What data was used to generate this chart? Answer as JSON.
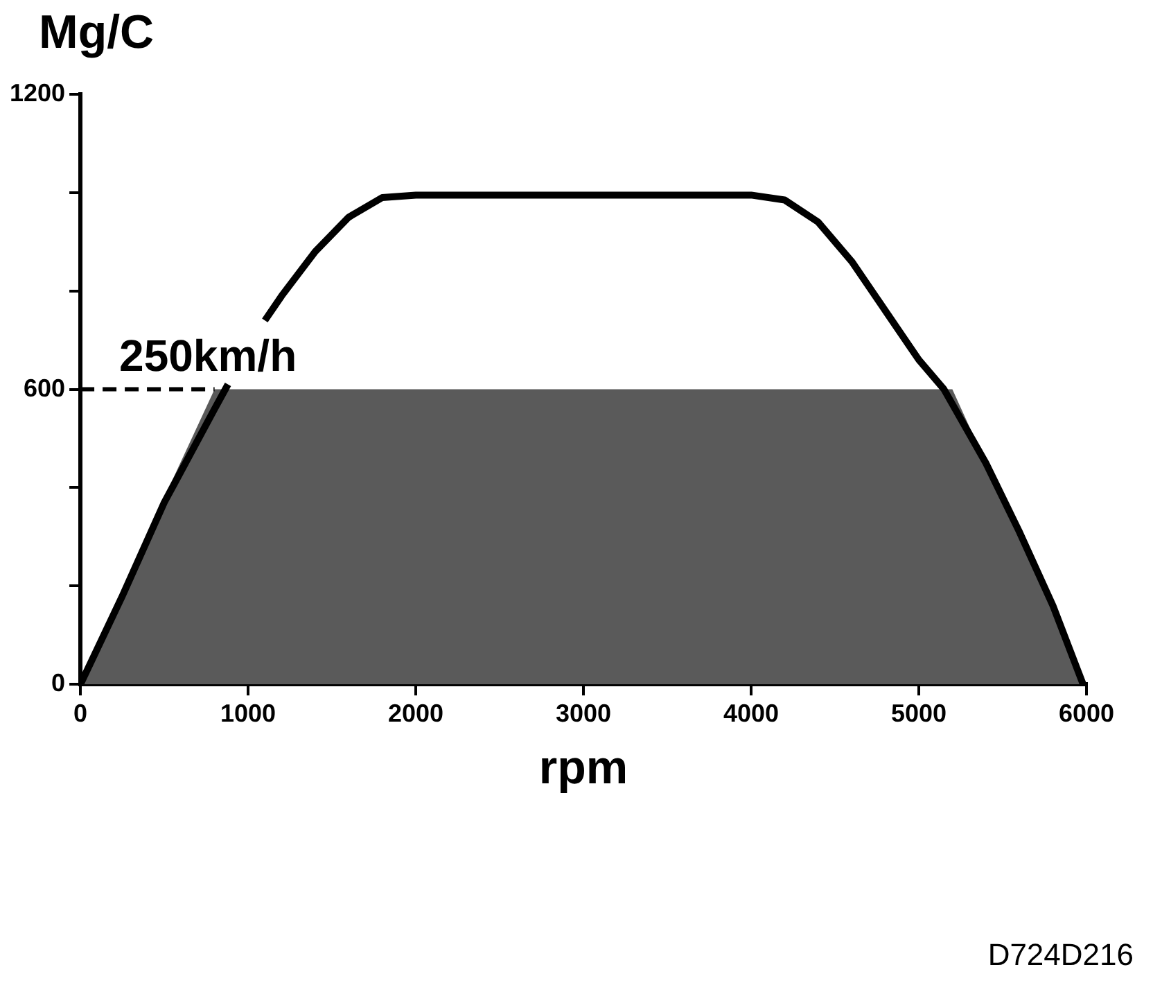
{
  "chart_data": {
    "type": "line",
    "ylabel": "Mg/C",
    "xlabel": "rpm",
    "annotations": [
      "D724D216"
    ],
    "xlim": [
      0,
      6000
    ],
    "xticks": [
      0,
      1000,
      2000,
      3000,
      4000,
      5000,
      6000
    ],
    "ylim": [
      0,
      1200
    ],
    "yticks": [
      0,
      {
        "value": 200,
        "label": null
      },
      {
        "value": 400,
        "label": null
      },
      600,
      {
        "value": 800,
        "label": null
      },
      {
        "value": 1000,
        "label": null
      },
      1200
    ],
    "series": [
      {
        "type": "area",
        "color": "#5a5a5a",
        "x": [
          0,
          250,
          500,
          800,
          5200,
          5400,
          5600,
          5800,
          5980
        ],
        "values": [
          0,
          190,
          380,
          600,
          600,
          450,
          300,
          150,
          0
        ]
      },
      {
        "type": "line",
        "color": "#000000",
        "x": [
          0,
          250,
          500,
          800,
          880,
          1000,
          1100,
          1200,
          1400,
          1600,
          1800,
          2000,
          4000,
          4200,
          4400,
          4600,
          4800,
          5000,
          5150,
          5400,
          5600,
          5800,
          5980
        ],
        "values": [
          0,
          180,
          370,
          560,
          610,
          null,
          740,
          790,
          880,
          950,
          990,
          995,
          995,
          985,
          940,
          860,
          760,
          660,
          600,
          450,
          310,
          160,
          0
        ]
      }
    ],
    "ref_lines": [
      {
        "axis": "y",
        "value": 600,
        "label": "250km/h",
        "line_style": "dashed",
        "color": "#000000"
      }
    ],
    "grid": false,
    "legend": false,
    "marker": "none",
    "line_style": "solid"
  }
}
